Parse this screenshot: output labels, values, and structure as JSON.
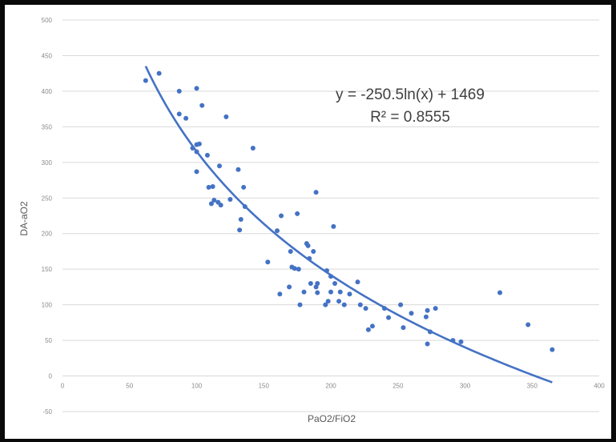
{
  "chart_data": {
    "type": "scatter",
    "xlabel": "PaO2/FiO2",
    "ylabel": "DA-aO2",
    "xlim": [
      0,
      400
    ],
    "ylim": [
      -50,
      500
    ],
    "x_ticks": [
      "0",
      "50",
      "100",
      "150",
      "200",
      "250",
      "300",
      "350",
      "400"
    ],
    "y_ticks": [
      "-50",
      "0",
      "50",
      "100",
      "150",
      "200",
      "250",
      "300",
      "350",
      "400",
      "450",
      "500"
    ],
    "grid": "horizontal",
    "colors": {
      "points": "#4472c4",
      "trendline": "#4472c4",
      "grid": "#d9d9d9"
    },
    "trendline": {
      "type": "logarithmic",
      "a": -250.5,
      "b": 1469,
      "x_range": [
        62,
        365
      ],
      "equation_label": "y = -250.5ln(x) + 1469",
      "r2_label": "R² = 0.8555"
    },
    "points": [
      [
        62,
        415
      ],
      [
        72,
        425
      ],
      [
        87,
        400
      ],
      [
        87,
        368
      ],
      [
        92,
        362
      ],
      [
        100,
        404
      ],
      [
        104,
        380
      ],
      [
        97,
        320
      ],
      [
        100,
        325
      ],
      [
        102,
        326
      ],
      [
        100,
        315
      ],
      [
        100,
        287
      ],
      [
        108,
        310
      ],
      [
        109,
        265
      ],
      [
        112,
        266
      ],
      [
        111,
        242
      ],
      [
        113,
        247
      ],
      [
        116,
        244
      ],
      [
        117,
        295
      ],
      [
        118,
        240
      ],
      [
        122,
        364
      ],
      [
        125,
        248
      ],
      [
        131,
        290
      ],
      [
        133,
        220
      ],
      [
        132,
        205
      ],
      [
        135,
        265
      ],
      [
        136,
        238
      ],
      [
        142,
        320
      ],
      [
        153,
        160
      ],
      [
        160,
        204
      ],
      [
        162,
        115
      ],
      [
        163,
        225
      ],
      [
        169,
        125
      ],
      [
        170,
        175
      ],
      [
        171,
        153
      ],
      [
        173,
        151
      ],
      [
        175,
        228
      ],
      [
        176,
        150
      ],
      [
        177,
        100
      ],
      [
        180,
        118
      ],
      [
        182,
        186
      ],
      [
        183,
        183
      ],
      [
        184,
        165
      ],
      [
        185,
        130
      ],
      [
        187,
        175
      ],
      [
        189,
        258
      ],
      [
        189,
        125
      ],
      [
        190,
        130
      ],
      [
        190,
        117
      ],
      [
        196,
        100
      ],
      [
        197,
        148
      ],
      [
        198,
        105
      ],
      [
        200,
        140
      ],
      [
        200,
        118
      ],
      [
        202,
        210
      ],
      [
        203,
        130
      ],
      [
        206,
        105
      ],
      [
        207,
        118
      ],
      [
        210,
        100
      ],
      [
        214,
        115
      ],
      [
        220,
        132
      ],
      [
        222,
        100
      ],
      [
        226,
        95
      ],
      [
        228,
        65
      ],
      [
        231,
        70
      ],
      [
        240,
        95
      ],
      [
        243,
        82
      ],
      [
        252,
        100
      ],
      [
        254,
        68
      ],
      [
        260,
        88
      ],
      [
        271,
        83
      ],
      [
        272,
        92
      ],
      [
        272,
        45
      ],
      [
        274,
        62
      ],
      [
        278,
        95
      ],
      [
        291,
        50
      ],
      [
        297,
        48
      ],
      [
        326,
        117
      ],
      [
        347,
        72
      ],
      [
        365,
        37
      ]
    ]
  }
}
